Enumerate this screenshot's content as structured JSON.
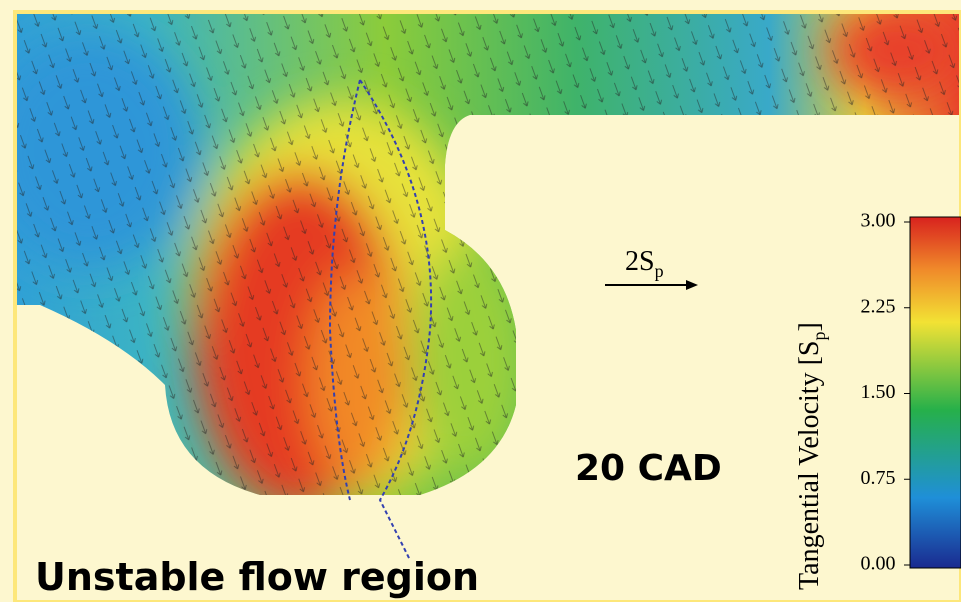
{
  "scale_arrow": {
    "text": "2S",
    "subscript": "p"
  },
  "crank_angle": "20 CAD",
  "region_label": "Unstable flow region",
  "colorbar": {
    "title_parts": [
      "Tangential Velocity [S",
      "p",
      "]"
    ],
    "ticks": [
      {
        "value": 0,
        "label": "0.00"
      },
      {
        "value": 0.75,
        "label": "0.75"
      },
      {
        "value": 1.5,
        "label": "1.50"
      },
      {
        "value": 2.25,
        "label": "2.25"
      },
      {
        "value": 3,
        "label": "3.00"
      }
    ],
    "range": [
      0,
      3
    ]
  }
}
